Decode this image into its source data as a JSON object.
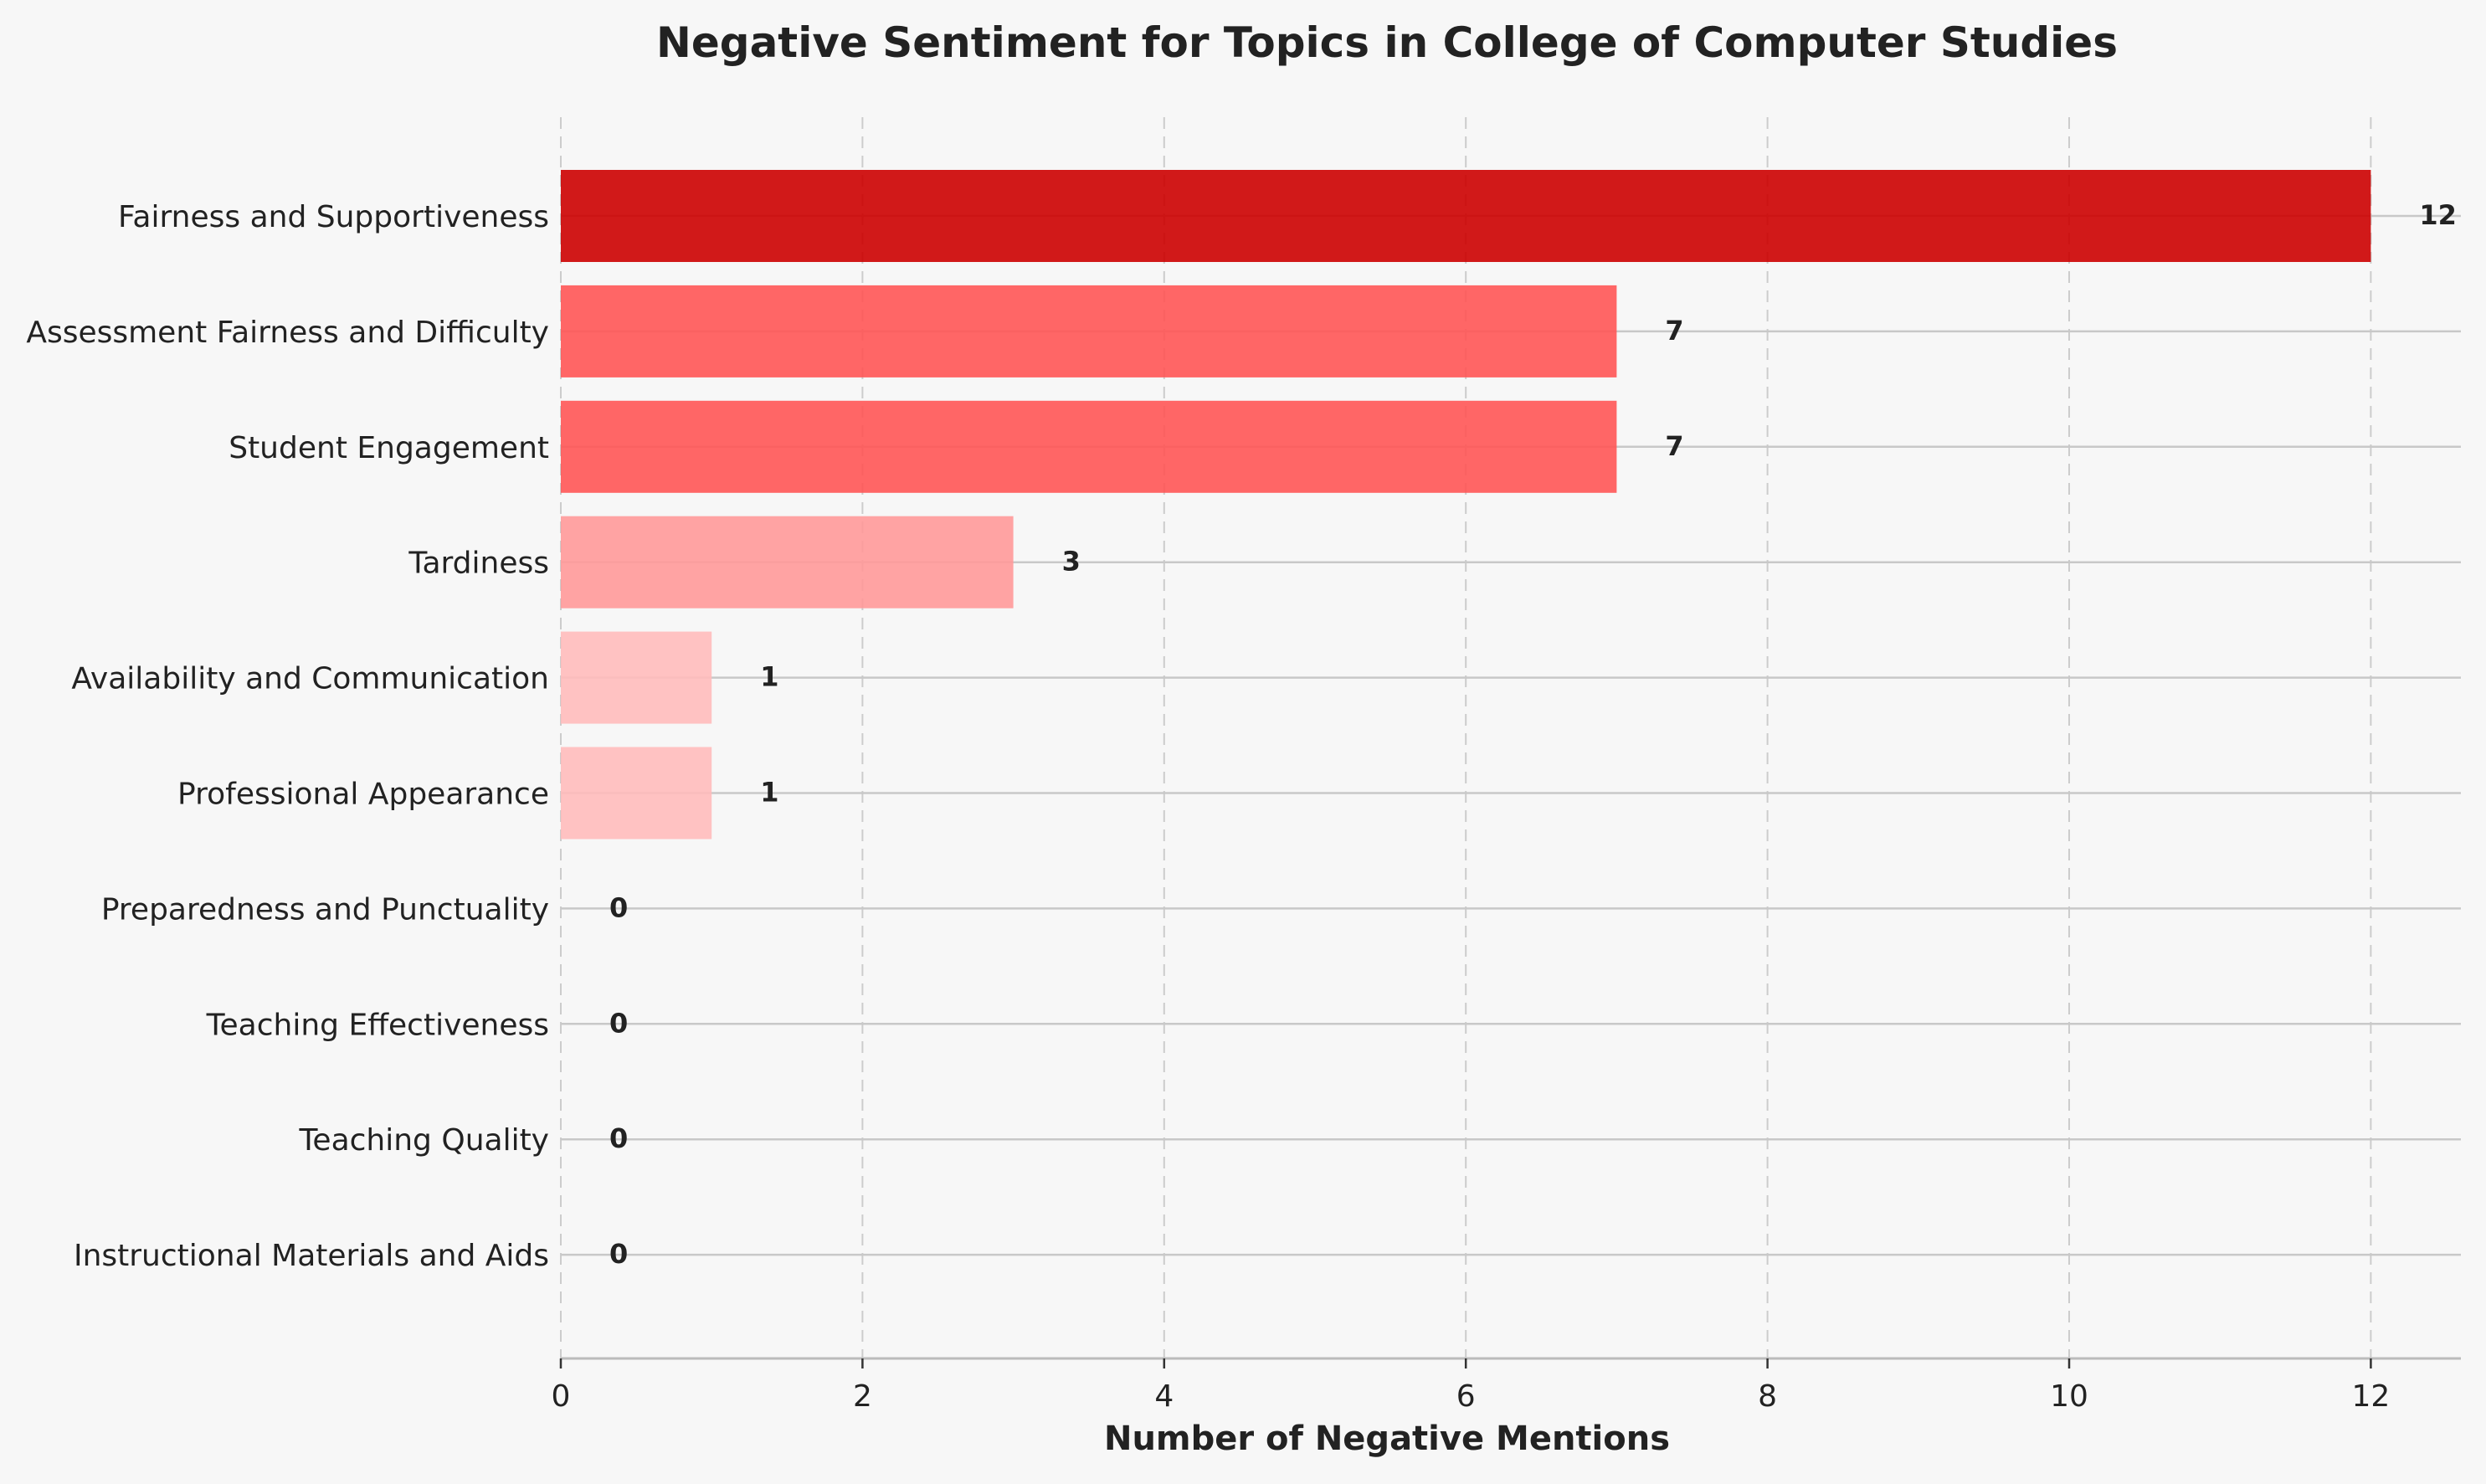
{
  "chart_data": {
    "type": "bar",
    "orientation": "horizontal",
    "title": "Negative Sentiment for Topics in College of Computer Studies",
    "xlabel": "Number of Negative Mentions",
    "ylabel": "",
    "xlim": [
      0,
      12.6
    ],
    "xticks": [
      0,
      2,
      4,
      6,
      8,
      10,
      12
    ],
    "grid": "vertical dashed",
    "categories": [
      "Fairness and Supportiveness",
      "Assessment Fairness and Difficulty",
      "Student Engagement",
      "Tardiness",
      "Availability and Communication",
      "Professional Appearance",
      "Preparedness and Punctuality",
      "Teaching Effectiveness",
      "Teaching Quality",
      "Instructional Materials and Aids"
    ],
    "values": [
      12,
      7,
      7,
      3,
      1,
      1,
      0,
      0,
      0,
      0
    ],
    "colors": {
      "high": "#cc0000",
      "mid": "#ff5555",
      "low": "#ff9999",
      "lowest": "#ffbbbb",
      "background": "#f7f7f7",
      "grid": "#cccccc",
      "row_line": "#c8c8c8",
      "axis": "#bbbbbb"
    }
  }
}
